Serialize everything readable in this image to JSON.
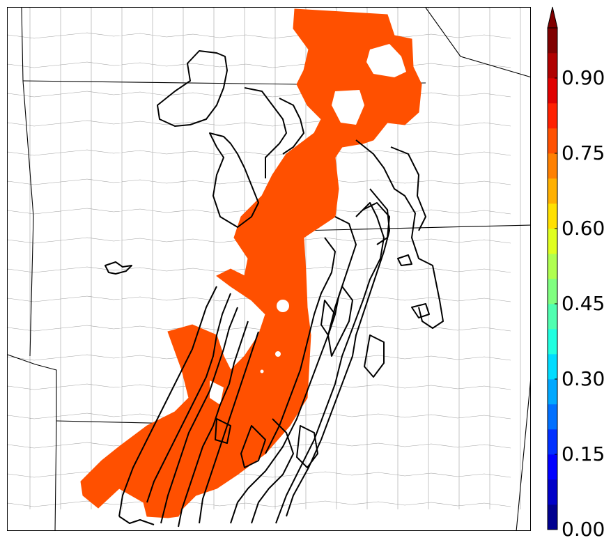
{
  "colorbar": {
    "min": 0.0,
    "max": 1.0,
    "extend": "max",
    "levels": [
      0.0,
      0.05,
      0.1,
      0.15,
      0.2,
      0.25,
      0.3,
      0.35,
      0.4,
      0.45,
      0.5,
      0.55,
      0.6,
      0.65,
      0.7,
      0.75,
      0.8,
      0.85,
      0.9,
      0.95,
      1.0
    ],
    "colors": [
      "#00008f",
      "#0000c8",
      "#0000ff",
      "#0030ff",
      "#0070ff",
      "#00a8ff",
      "#00dcff",
      "#20ffe0",
      "#50ffb0",
      "#80ff80",
      "#b0ff50",
      "#e0ff20",
      "#ffe000",
      "#ffb000",
      "#ff8000",
      "#ff5000",
      "#ff2000",
      "#e00000",
      "#b00000",
      "#800000"
    ],
    "extend_color": "#800000",
    "tick_labels": [
      "0.00",
      "0.15",
      "0.30",
      "0.45",
      "0.60",
      "0.75",
      "0.90"
    ],
    "tick_values": [
      0.0,
      0.15,
      0.3,
      0.45,
      0.6,
      0.75,
      0.9
    ]
  },
  "map": {
    "fill_color": "#ff5000",
    "contour_color": "#000000",
    "boundary_color": "#000000",
    "county_color": "#9a9a9a"
  }
}
